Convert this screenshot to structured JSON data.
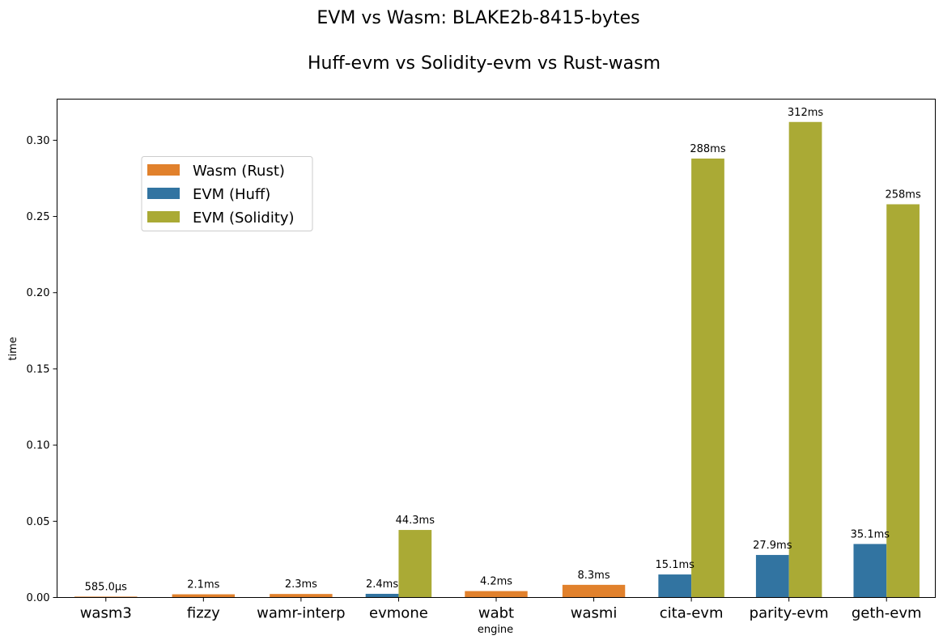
{
  "chart_data": {
    "type": "bar",
    "title": "EVM vs Wasm: BLAKE2b-8415-bytes",
    "subtitle": "Huff-evm vs Solidity-evm vs Rust-wasm",
    "xlabel": "engine",
    "ylabel": "time",
    "ylim": [
      0,
      0.327
    ],
    "yticks": [
      0.0,
      0.05,
      0.1,
      0.15,
      0.2,
      0.25,
      0.3
    ],
    "ytick_labels": [
      "0.00",
      "0.05",
      "0.10",
      "0.15",
      "0.20",
      "0.25",
      "0.30"
    ],
    "grid": false,
    "legend_position": "upper-left",
    "categories": [
      "wasm3",
      "fizzy",
      "wamr-interp",
      "evmone",
      "wabt",
      "wasmi",
      "cita-evm",
      "parity-evm",
      "geth-evm"
    ],
    "series": [
      {
        "name": "Wasm (Rust)",
        "color": "#e1812c",
        "values": [
          0.000585,
          0.0021,
          0.0023,
          null,
          0.0042,
          0.0083,
          null,
          null,
          null
        ],
        "labels": [
          "585.0µs",
          "2.1ms",
          "2.3ms",
          null,
          "4.2ms",
          "8.3ms",
          null,
          null,
          null
        ]
      },
      {
        "name": "EVM (Huff)",
        "color": "#3274a1",
        "values": [
          null,
          null,
          null,
          0.0024,
          null,
          null,
          0.0151,
          0.0279,
          0.0351
        ],
        "labels": [
          null,
          null,
          null,
          "2.4ms",
          null,
          null,
          "15.1ms",
          "27.9ms",
          "35.1ms"
        ]
      },
      {
        "name": "EVM (Solidity)",
        "color": "#aaaa35",
        "values": [
          null,
          null,
          null,
          0.0443,
          null,
          null,
          0.288,
          0.312,
          0.258
        ],
        "labels": [
          null,
          null,
          null,
          "44.3ms",
          null,
          null,
          "288ms",
          "312ms",
          "258ms"
        ]
      }
    ]
  }
}
